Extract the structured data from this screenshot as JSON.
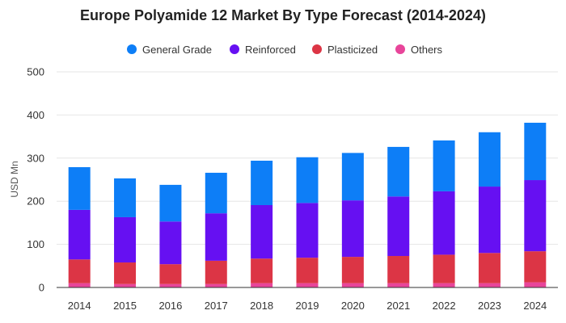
{
  "chart_data": {
    "type": "bar",
    "stacked": true,
    "title": "Europe Polyamide 12 Market By Type Forecast (2014-2024)",
    "xlabel": "",
    "ylabel": "USD Mn",
    "ylim": [
      0,
      500
    ],
    "yticks": [
      0,
      100,
      200,
      300,
      400,
      500
    ],
    "grid": true,
    "legend_position": "top-center",
    "categories": [
      "2014",
      "2015",
      "2016",
      "2017",
      "2018",
      "2019",
      "2020",
      "2021",
      "2022",
      "2023",
      "2024"
    ],
    "series": [
      {
        "name": "Others",
        "color": "#e8459a",
        "values": [
          10,
          8,
          8,
          8,
          10,
          10,
          10,
          10,
          10,
          10,
          12
        ]
      },
      {
        "name": "Plasticized",
        "color": "#dc3545",
        "values": [
          55,
          50,
          46,
          54,
          57,
          59,
          61,
          63,
          66,
          70,
          72
        ]
      },
      {
        "name": "Reinforced",
        "color": "#6610f2",
        "values": [
          115,
          105,
          99,
          110,
          124,
          127,
          131,
          138,
          147,
          154,
          165
        ]
      },
      {
        "name": "General Grade",
        "color": "#0d7ef7",
        "values": [
          99,
          90,
          85,
          94,
          103,
          106,
          110,
          115,
          118,
          126,
          133
        ]
      }
    ],
    "legend_order": [
      "General Grade",
      "Reinforced",
      "Plasticized",
      "Others"
    ]
  }
}
